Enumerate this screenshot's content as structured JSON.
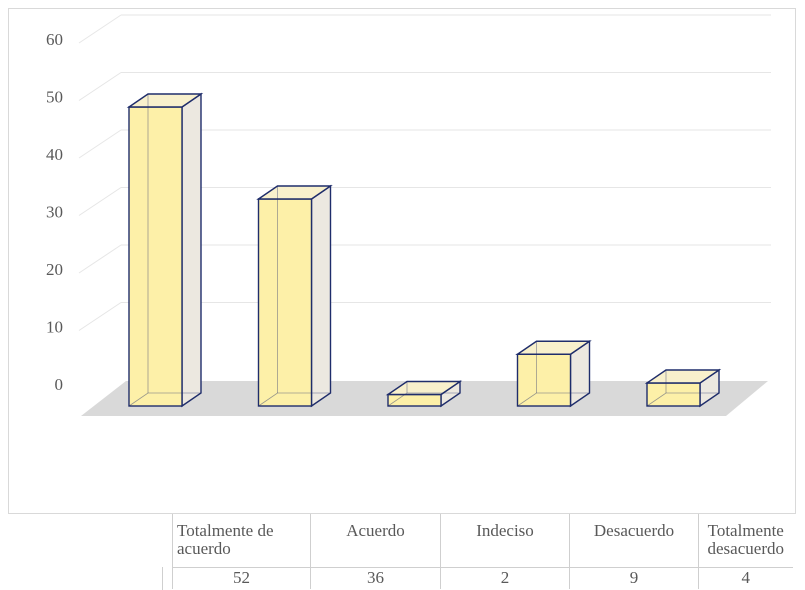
{
  "chart_data": {
    "type": "bar",
    "style": "3d-column",
    "categories": [
      "Totalmente de acuerdo",
      "Acuerdo",
      "Indeciso",
      "Desacuerdo",
      "Totalmente desacuerdo"
    ],
    "values": [
      52,
      36,
      2,
      9,
      4
    ],
    "ylim": [
      0,
      60
    ],
    "yticks": [
      "0",
      "10",
      "20",
      "30",
      "40",
      "50",
      "60"
    ],
    "grid": true,
    "legend": "none",
    "data_table": true,
    "colors": {
      "bar_fill": "#fdf0a8",
      "bar_edge": "#1f2d6b",
      "side_fill": "#ece8e0",
      "floor": "#d9d9d9",
      "grid": "#e6e6e6"
    }
  }
}
